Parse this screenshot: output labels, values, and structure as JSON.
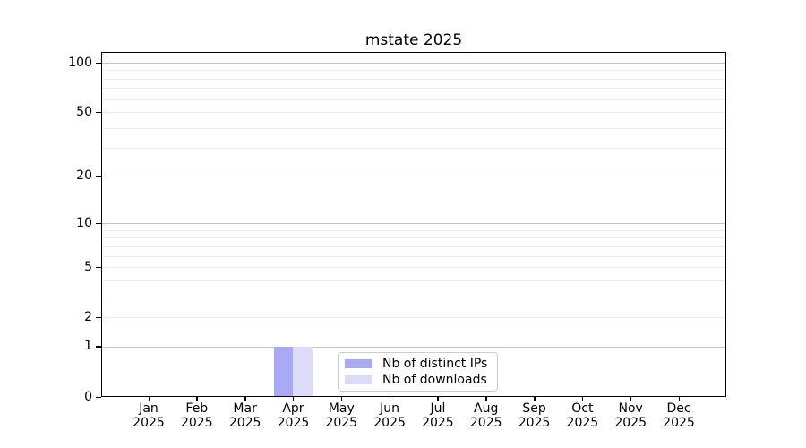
{
  "chart_data": {
    "type": "bar",
    "title": "mstate 2025",
    "categories": [
      "Jan 2025",
      "Feb 2025",
      "Mar 2025",
      "Apr 2025",
      "May 2025",
      "Jun 2025",
      "Jul 2025",
      "Aug 2025",
      "Sep 2025",
      "Oct 2025",
      "Nov 2025",
      "Dec 2025"
    ],
    "series": [
      {
        "name": "Nb of distinct IPs",
        "color": "#a9a9f6",
        "values": [
          0,
          0,
          0,
          1,
          0,
          0,
          0,
          0,
          0,
          0,
          0,
          0
        ]
      },
      {
        "name": "Nb of downloads",
        "color": "#dcdcf8",
        "values": [
          0,
          0,
          0,
          1,
          0,
          0,
          0,
          0,
          0,
          0,
          0,
          0
        ]
      }
    ],
    "yscale": "log1p",
    "ylim": [
      0,
      100
    ],
    "yticks": [
      0,
      1,
      2,
      5,
      10,
      20,
      50,
      100
    ],
    "grid_major": [
      1,
      10,
      100
    ],
    "grid_minor": [
      2,
      3,
      4,
      6,
      7,
      8,
      9,
      5,
      20,
      30,
      40,
      50,
      60,
      70,
      80,
      90
    ],
    "legend_position": "inside-bottom-center",
    "colors": {
      "major_grid": "#c4c4c4",
      "minor_grid": "#ededed",
      "spine": "#000000",
      "background": "#ffffff"
    }
  }
}
